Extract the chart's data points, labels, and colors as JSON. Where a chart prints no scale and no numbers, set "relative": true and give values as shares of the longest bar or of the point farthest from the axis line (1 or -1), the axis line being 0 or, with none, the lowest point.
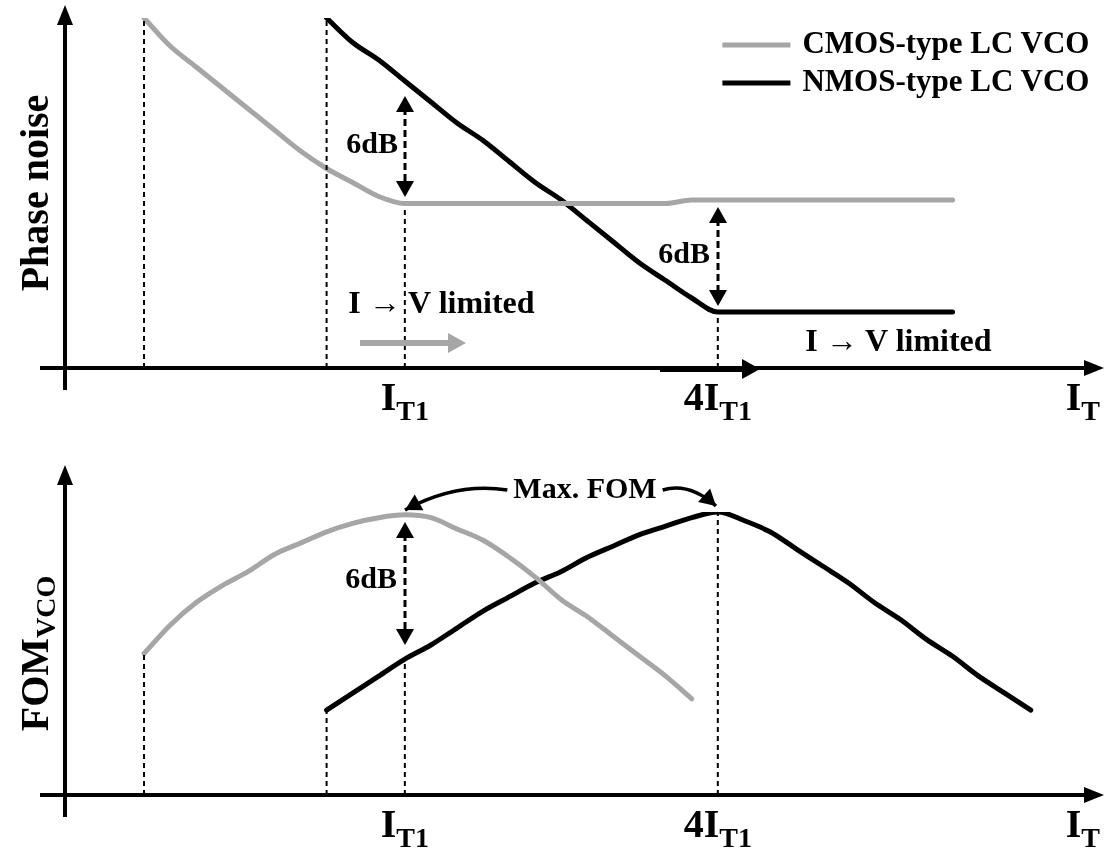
{
  "chart_data": [
    {
      "type": "line",
      "ylabel": "Phase noise",
      "xlabel": "I$_{T}$",
      "relative": true,
      "legend": "top right",
      "marker": "none",
      "categories": [
        null,
        null,
        null,
        null,
        null,
        null,
        null,
        null,
        null,
        null,
        "I$_{T1}$",
        null,
        null,
        null,
        null,
        null,
        null,
        null,
        null,
        null,
        null,
        null,
        "4I$_{T1}$",
        null,
        null,
        null,
        null,
        null,
        null,
        null,
        null,
        null,
        null,
        null,
        null
      ],
      "series": [
        {
          "name": "CMOS-type LC VCO",
          "color": "#a6a6a6",
          "values": [
            1,
            0.92,
            0.86,
            0.8,
            0.74,
            0.68,
            0.62,
            0.57,
            0.53,
            0.49,
            0.47,
            0.47,
            0.47,
            0.47,
            0.47,
            0.47,
            0.47,
            0.47,
            0.47,
            0.47,
            0.47,
            0.48,
            0.48,
            0.48,
            0.48,
            0.48,
            0.48,
            0.48,
            0.48,
            0.48,
            0.48,
            0.48,
            null,
            null,
            null
          ]
        },
        {
          "name": "NMOS-type LC VCO",
          "color": "#000000",
          "values": [
            null,
            null,
            null,
            null,
            null,
            null,
            null,
            1,
            0.93,
            0.88,
            0.82,
            0.76,
            0.7,
            0.65,
            0.59,
            0.53,
            0.48,
            0.42,
            0.36,
            0.3,
            0.25,
            0.2,
            0.16,
            0.16,
            0.16,
            0.16,
            0.16,
            0.16,
            0.16,
            0.16,
            0.16,
            0.16,
            null,
            null,
            null
          ]
        }
      ],
      "ref_lines": [
        {
          "axis": "x",
          "value": "I$_{T1}$"
        },
        {
          "axis": "x",
          "value": "4I$_{T1}$"
        }
      ],
      "annotations": [
        "6dB",
        "6dB",
        "I → V limited",
        "I → V limited"
      ]
    },
    {
      "type": "line",
      "ylabel": "FOM$_{VCO}$",
      "xlabel": "I$_{T}$",
      "relative": true,
      "marker": "none",
      "categories": [
        null,
        null,
        null,
        null,
        null,
        null,
        null,
        null,
        null,
        null,
        "I$_{T1}$",
        null,
        null,
        null,
        null,
        null,
        null,
        null,
        null,
        null,
        null,
        null,
        "4I$_{T1}$",
        null,
        null,
        null,
        null,
        null,
        null,
        null,
        null,
        null,
        null,
        null,
        null
      ],
      "series": [
        {
          "color": "#a6a6a6",
          "values": [
            0.5,
            0.6,
            0.68,
            0.74,
            0.79,
            0.85,
            0.89,
            0.93,
            0.96,
            0.98,
            0.99,
            0.98,
            0.94,
            0.9,
            0.84,
            0.77,
            0.69,
            0.63,
            0.56,
            0.49,
            0.42,
            0.34,
            null,
            null,
            null,
            null,
            null,
            null,
            null,
            null,
            null,
            null,
            null,
            null,
            null
          ]
        },
        {
          "color": "#000000",
          "values": [
            null,
            null,
            null,
            null,
            null,
            null,
            null,
            0.3,
            0.36,
            0.42,
            0.48,
            0.53,
            0.59,
            0.65,
            0.7,
            0.75,
            0.79,
            0.84,
            0.88,
            0.92,
            0.95,
            0.98,
            1,
            0.97,
            0.93,
            0.87,
            0.81,
            0.75,
            0.68,
            0.62,
            0.55,
            0.49,
            0.42,
            0.36,
            0.3
          ]
        }
      ],
      "ref_lines": [
        {
          "axis": "x",
          "value": "I$_{T1}$"
        },
        {
          "axis": "x",
          "value": "4I$_{T1}$"
        }
      ],
      "annotations": [
        "Max. FOM",
        "6dB"
      ]
    }
  ]
}
